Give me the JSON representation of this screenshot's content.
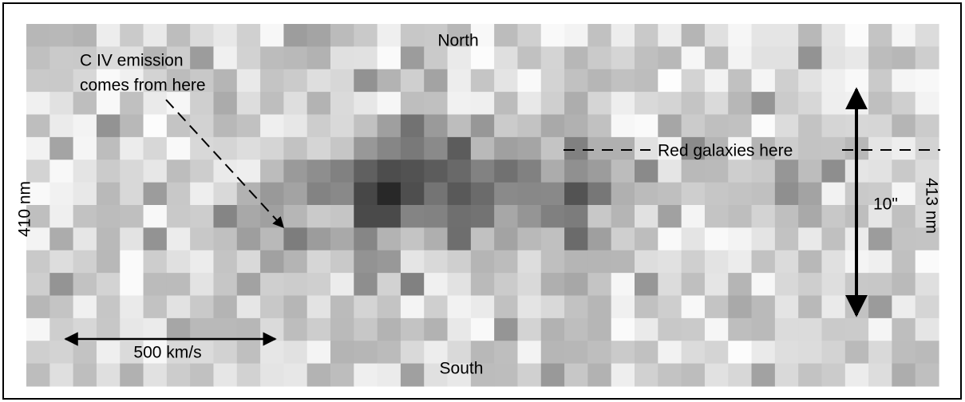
{
  "figure": {
    "north": "North",
    "south": "South",
    "emission_line1": "C IV emission",
    "emission_line2": "comes from here",
    "red_galaxies": "Red galaxies here",
    "left_wavelength": "410 nm",
    "right_wavelength": "413 nm",
    "angular_scale": "10\"",
    "velocity_scale": "500 km/s"
  }
}
